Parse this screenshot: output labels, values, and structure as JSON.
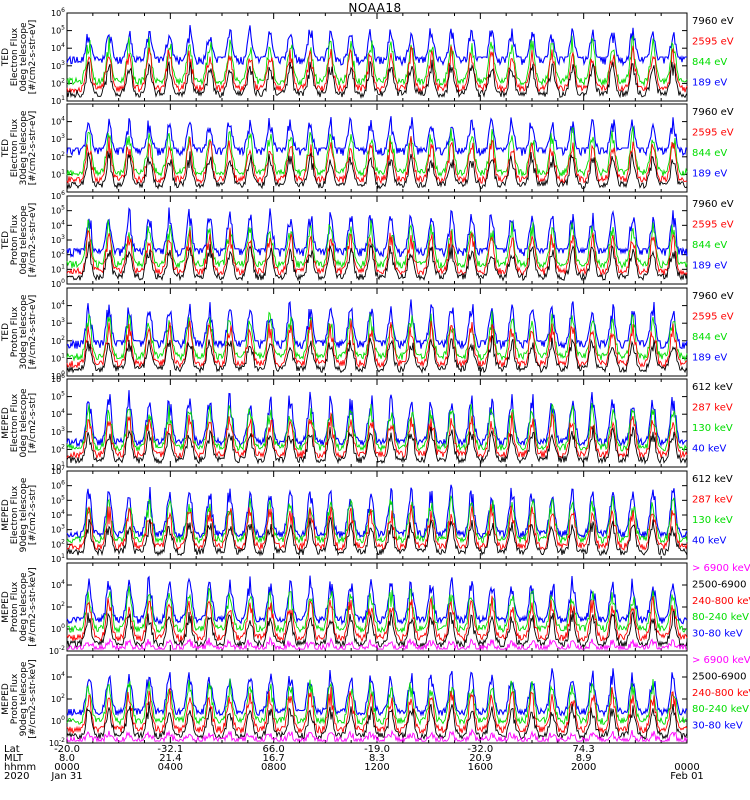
{
  "title": "NOAA18",
  "colors": {
    "blue": "#0000ff",
    "red": "#ff0000",
    "green": "#00dd00",
    "black": "#000000",
    "magenta": "#ff00ff"
  },
  "chart_data": [
    {
      "type": "line",
      "ylabel": [
        "TED",
        "Electron Flux",
        "0deg telescope",
        "[#/cm2-s-str-eV]"
      ],
      "ylim_exp": [
        1,
        6
      ],
      "ytick_exps": [
        1,
        2,
        3,
        4,
        5,
        6
      ],
      "series": [
        {
          "name": "7960 eV",
          "color": "black"
        },
        {
          "name": "2595 eV",
          "color": "red"
        },
        {
          "name": "844 eV",
          "color": "green"
        },
        {
          "name": "189 eV",
          "color": "blue"
        }
      ]
    },
    {
      "type": "line",
      "ylabel": [
        "TED",
        "Electron Flux",
        "30deg telescope",
        "[#/cm2-s-str-eV]"
      ],
      "ylim_exp": [
        0,
        5
      ],
      "ytick_exps": [
        1,
        2,
        3,
        4
      ],
      "series": [
        {
          "name": "7960 eV",
          "color": "black"
        },
        {
          "name": "2595 eV",
          "color": "red"
        },
        {
          "name": "844 eV",
          "color": "green"
        },
        {
          "name": "189 eV",
          "color": "blue"
        }
      ]
    },
    {
      "type": "line",
      "ylabel": [
        "TED",
        "Proton Flux",
        "0deg telescope",
        "[#/cm2-s-str-eV]"
      ],
      "ylim_exp": [
        0,
        6
      ],
      "ytick_exps": [
        0,
        1,
        2,
        3,
        4,
        5,
        6
      ],
      "series": [
        {
          "name": "7960 eV",
          "color": "black"
        },
        {
          "name": "2595 eV",
          "color": "red"
        },
        {
          "name": "844 eV",
          "color": "green"
        },
        {
          "name": "189 eV",
          "color": "blue"
        }
      ]
    },
    {
      "type": "line",
      "ylabel": [
        "TED",
        "Proton Flux",
        "30deg telescope",
        "[#/cm2-s-str-eV]"
      ],
      "ylim_exp": [
        0,
        5
      ],
      "ytick_exps": [
        0,
        1,
        2,
        3,
        4
      ],
      "series": [
        {
          "name": "7960 eV",
          "color": "black"
        },
        {
          "name": "2595 eV",
          "color": "red"
        },
        {
          "name": "844 eV",
          "color": "green"
        },
        {
          "name": "189 eV",
          "color": "blue"
        }
      ]
    },
    {
      "type": "line",
      "ylabel": [
        "MEPED",
        "Electron Flux",
        "0deg telescope",
        "[#/cm2-s-str]"
      ],
      "ylim_exp": [
        1,
        6
      ],
      "ytick_exps": [
        1,
        2,
        3,
        4,
        5,
        6
      ],
      "series": [
        {
          "name": "612 keV",
          "color": "black"
        },
        {
          "name": "287 keV",
          "color": "red"
        },
        {
          "name": "130 keV",
          "color": "green"
        },
        {
          "name": "40 keV",
          "color": "blue"
        }
      ]
    },
    {
      "type": "line",
      "ylabel": [
        "MEPED",
        "Electron Flux",
        "90deg telescope",
        "[#/cm2-s-str]"
      ],
      "ylim_exp": [
        1,
        7
      ],
      "ytick_exps": [
        1,
        2,
        3,
        4,
        5,
        6,
        7
      ],
      "series": [
        {
          "name": "612 keV",
          "color": "black"
        },
        {
          "name": "287 keV",
          "color": "red"
        },
        {
          "name": "130 keV",
          "color": "green"
        },
        {
          "name": "40 keV",
          "color": "blue"
        }
      ]
    },
    {
      "type": "line",
      "ylabel": [
        "MEPED",
        "Proton Flux",
        "0deg telescope",
        "[#/cm2-s-str-keV]"
      ],
      "ylim_exp": [
        -2,
        6
      ],
      "ytick_exps": [
        -2,
        0,
        2,
        4
      ],
      "series": [
        {
          "name": "> 6900 keV",
          "color": "magenta"
        },
        {
          "name": "2500-6900",
          "color": "black"
        },
        {
          "name": "240-800 keV",
          "color": "red"
        },
        {
          "name": "80-240 keV",
          "color": "green"
        },
        {
          "name": "30-80 keV",
          "color": "blue"
        }
      ]
    },
    {
      "type": "line",
      "ylabel": [
        "MEPED",
        "Proton Flux",
        "90deg telescope",
        "[#/cm2-s-str-keV]"
      ],
      "ylim_exp": [
        -2,
        6
      ],
      "ytick_exps": [
        -2,
        0,
        2,
        4
      ],
      "series": [
        {
          "name": "> 6900 keV",
          "color": "magenta"
        },
        {
          "name": "2500-6900",
          "color": "black"
        },
        {
          "name": "240-800 keV",
          "color": "red"
        },
        {
          "name": "80-240 keV",
          "color": "green"
        },
        {
          "name": "30-80 keV",
          "color": "blue"
        }
      ]
    }
  ],
  "x_axis": {
    "row_labels": [
      "Lat",
      "MLT",
      "hhmm",
      "2020"
    ],
    "ticks": [
      {
        "lat": "-20.0",
        "mlt": "8.0",
        "hhmm": "0000",
        "date": "Jan 31"
      },
      {
        "lat": "-32.1",
        "mlt": "21.4",
        "hhmm": "0400",
        "date": ""
      },
      {
        "lat": "66.0",
        "mlt": "16.7",
        "hhmm": "0800",
        "date": ""
      },
      {
        "lat": "-19.0",
        "mlt": "8.3",
        "hhmm": "1200",
        "date": ""
      },
      {
        "lat": "-32.0",
        "mlt": "20.9",
        "hhmm": "1600",
        "date": ""
      },
      {
        "lat": "74.3",
        "mlt": "8.9",
        "hhmm": "2000",
        "date": ""
      },
      {
        "lat": "",
        "mlt": "",
        "hhmm": "0000",
        "date": "Feb 01"
      }
    ]
  }
}
